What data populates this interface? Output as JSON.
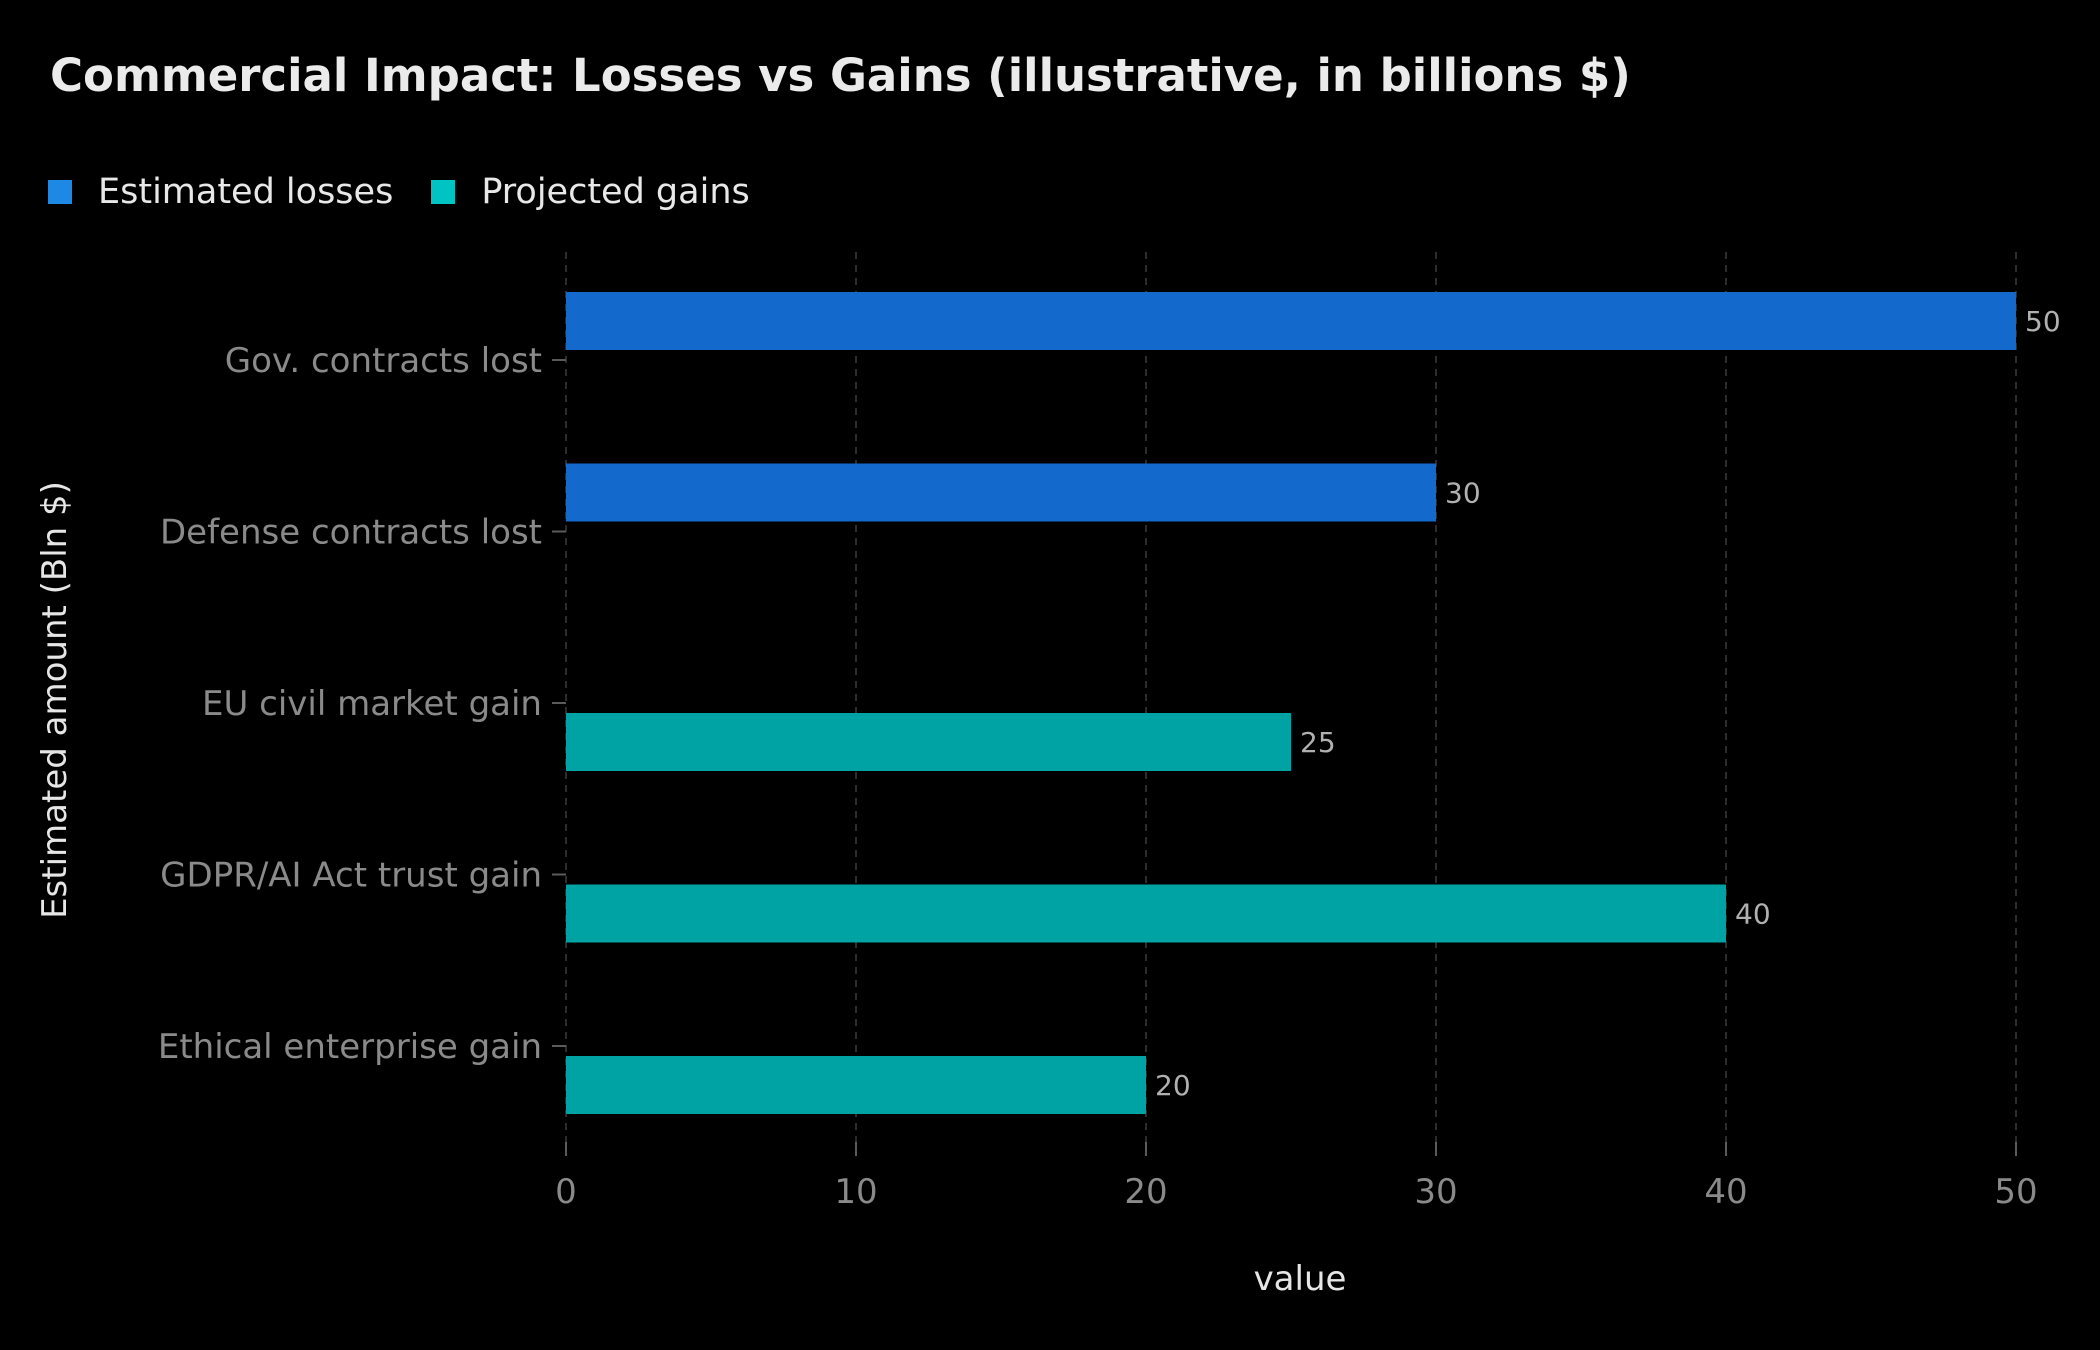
{
  "chart_data": {
    "type": "bar",
    "orientation": "horizontal",
    "title": "Commercial Impact: Losses vs Gains (illustrative, in billions $)",
    "xlabel": "value",
    "ylabel": "Estimated amount (Bln $)",
    "xlim": [
      0,
      50
    ],
    "xticks": [
      0,
      10,
      20,
      30,
      40,
      50
    ],
    "grid": "vertical dashed",
    "legend_position": "top-left",
    "categories": [
      "Gov. contracts lost",
      "Defense contracts lost",
      "EU civil market gain",
      "GDPR/AI Act trust gain",
      "Ethical enterprise gain"
    ],
    "series": [
      {
        "name": "Estimated losses",
        "color": "#1e88e5",
        "values": [
          50,
          30,
          null,
          null,
          null
        ]
      },
      {
        "name": "Projected gains",
        "color": "#00c4c4",
        "values": [
          null,
          null,
          25,
          40,
          20
        ]
      }
    ]
  }
}
